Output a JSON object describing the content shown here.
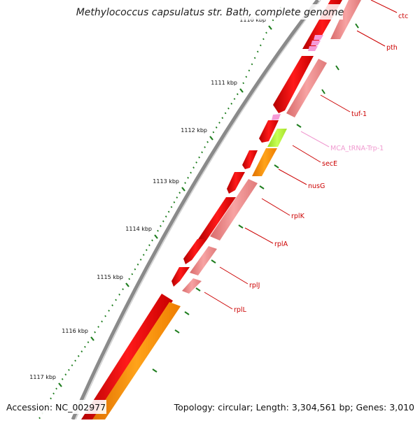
{
  "title": "Methylococcus capsulatus str. Bath, complete genome",
  "footer": {
    "accession": "Accession: NC_002977",
    "summary": "Topology: circular; Length: 3,304,561 bp; Genes: 3,010"
  },
  "ruler": {
    "tick_color": "#1e7d1e",
    "labels": [
      "1110 kbp",
      "1111 kbp",
      "1112 kbp",
      "1113 kbp",
      "1114 kbp",
      "1115 kbp",
      "1116 kbp",
      "1117 kbp"
    ]
  },
  "colors": {
    "backbone": "#8a8a8a",
    "cds": "#ee0000",
    "cds_light": "#f08a8a",
    "rrna_orange": "#ff8c00",
    "trna_pink": "#f59ad6",
    "lime": "#b5f231",
    "label_red": "#cc0000",
    "label_pink": "#f09ad0"
  },
  "gene_labels": [
    {
      "name": "ctc",
      "color": "red"
    },
    {
      "name": "pth",
      "color": "red"
    },
    {
      "name": "tuf-1",
      "color": "red"
    },
    {
      "name": "MCA_tRNA-Trp-1",
      "color": "pink"
    },
    {
      "name": "secE",
      "color": "red"
    },
    {
      "name": "nusG",
      "color": "red"
    },
    {
      "name": "rplK",
      "color": "red"
    },
    {
      "name": "rplA",
      "color": "red"
    },
    {
      "name": "rplJ",
      "color": "red"
    },
    {
      "name": "rplL",
      "color": "red"
    }
  ]
}
